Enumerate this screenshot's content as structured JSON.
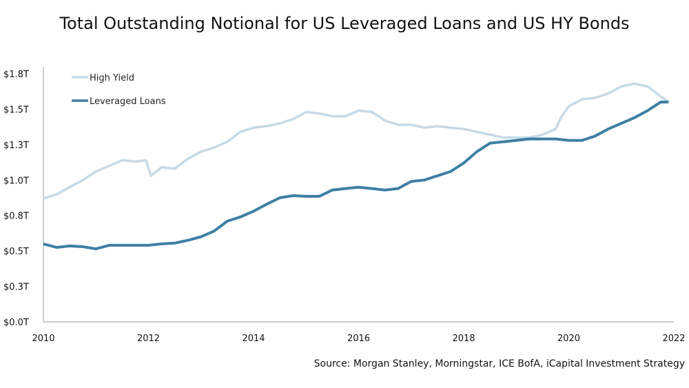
{
  "chart_data": {
    "type": "line",
    "title": "Total Outstanding Notional for US Leveraged Loans and US HY Bonds",
    "source": "Source: Morgan Stanley, Morningstar, ICE BofA, iCapital Investment Strategy",
    "xlabel": "",
    "ylabel": "",
    "xlim": [
      2010,
      2022
    ],
    "ylim": [
      0,
      1.75
    ],
    "x_ticks": [
      "2010",
      "2012",
      "2014",
      "2016",
      "2018",
      "2020",
      "2022"
    ],
    "y_ticks": [
      "$0.0T",
      "$0.3T",
      "$0.5T",
      "$0.8T",
      "$1.0T",
      "$1.3T",
      "$1.5T",
      "$1.8T"
    ],
    "grid": false,
    "legend_position": "top-left",
    "series": [
      {
        "name": "High Yield",
        "color": "#c5dae6",
        "x": [
          2010,
          2010.25,
          2010.5,
          2010.75,
          2011,
          2011.25,
          2011.5,
          2011.75,
          2011.95,
          2012.05,
          2012.25,
          2012.5,
          2012.75,
          2013,
          2013.25,
          2013.5,
          2013.75,
          2014,
          2014.25,
          2014.5,
          2014.75,
          2015,
          2015.25,
          2015.5,
          2015.75,
          2016,
          2016.25,
          2016.5,
          2016.75,
          2017,
          2017.25,
          2017.5,
          2017.75,
          2018,
          2018.25,
          2018.5,
          2018.75,
          2019,
          2019.25,
          2019.5,
          2019.75,
          2019.85,
          2020,
          2020.25,
          2020.5,
          2020.75,
          2021,
          2021.25,
          2021.5,
          2021.75,
          2021.9
        ],
        "y": [
          0.87,
          0.9,
          0.95,
          1.0,
          1.06,
          1.1,
          1.14,
          1.13,
          1.14,
          1.03,
          1.09,
          1.08,
          1.15,
          1.2,
          1.23,
          1.27,
          1.34,
          1.37,
          1.38,
          1.4,
          1.43,
          1.48,
          1.47,
          1.45,
          1.45,
          1.49,
          1.48,
          1.42,
          1.39,
          1.39,
          1.37,
          1.38,
          1.37,
          1.36,
          1.34,
          1.32,
          1.3,
          1.3,
          1.3,
          1.32,
          1.36,
          1.44,
          1.52,
          1.57,
          1.58,
          1.61,
          1.66,
          1.68,
          1.66,
          1.59,
          1.55
        ]
      },
      {
        "name": "Leveraged Loans",
        "color": "#3d7fa3",
        "x": [
          2010,
          2010.25,
          2010.5,
          2010.75,
          2011,
          2011.25,
          2011.5,
          2011.75,
          2012,
          2012.25,
          2012.5,
          2012.75,
          2013,
          2013.25,
          2013.5,
          2013.75,
          2014,
          2014.25,
          2014.5,
          2014.75,
          2015,
          2015.25,
          2015.5,
          2015.75,
          2016,
          2016.25,
          2016.5,
          2016.75,
          2017,
          2017.25,
          2017.5,
          2017.75,
          2018,
          2018.25,
          2018.5,
          2018.75,
          2019,
          2019.25,
          2019.5,
          2019.75,
          2020,
          2020.25,
          2020.5,
          2020.75,
          2021,
          2021.25,
          2021.5,
          2021.75,
          2021.9
        ],
        "y": [
          0.55,
          0.525,
          0.535,
          0.53,
          0.515,
          0.54,
          0.54,
          0.54,
          0.54,
          0.55,
          0.555,
          0.575,
          0.6,
          0.64,
          0.71,
          0.74,
          0.78,
          0.83,
          0.875,
          0.89,
          0.885,
          0.885,
          0.93,
          0.94,
          0.95,
          0.94,
          0.93,
          0.94,
          0.99,
          1.0,
          1.03,
          1.06,
          1.12,
          1.2,
          1.26,
          1.27,
          1.28,
          1.29,
          1.29,
          1.29,
          1.28,
          1.28,
          1.31,
          1.36,
          1.4,
          1.44,
          1.49,
          1.55,
          1.55
        ]
      }
    ]
  }
}
